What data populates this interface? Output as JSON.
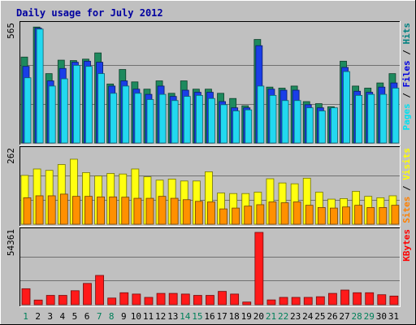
{
  "chart_data": {
    "type": "bar",
    "title": "Daily usage for July 2012",
    "days": [
      "1",
      "2",
      "3",
      "4",
      "5",
      "6",
      "7",
      "8",
      "9",
      "10",
      "11",
      "12",
      "13",
      "14",
      "15",
      "16",
      "17",
      "18",
      "19",
      "20",
      "21",
      "22",
      "23",
      "24",
      "25",
      "26",
      "27",
      "28",
      "29",
      "30",
      "31"
    ],
    "weekend_days": [
      "1",
      "7",
      "8",
      "14",
      "15",
      "21",
      "22",
      "28",
      "29"
    ],
    "panels": [
      {
        "id": "hits-files-pages",
        "ymax_label": "565",
        "ylim": [
          0,
          565
        ],
        "gridlines": [
          188,
          377
        ],
        "legend": [
          {
            "text": "Pages",
            "color": "#00e0f0"
          },
          {
            "text": " / ",
            "color": "#000000"
          },
          {
            "text": "Files",
            "color": "#0000e0"
          },
          {
            "text": " / ",
            "color": "#000000"
          },
          {
            "text": "Hits",
            "color": "#008080"
          }
        ],
        "series": [
          {
            "name": "Hits",
            "color": "#1e8a5e",
            "values": [
              415,
              560,
              335,
              400,
              398,
              405,
              435,
              285,
              355,
              295,
              260,
              300,
              240,
              300,
              260,
              260,
              240,
              215,
              180,
              500,
              270,
              265,
              275,
              200,
              190,
              175,
              395,
              275,
              265,
              290,
              335
            ]
          },
          {
            "name": "Files",
            "color": "#1a3ee8",
            "values": [
              370,
              555,
              300,
              360,
              390,
              395,
              390,
              275,
              300,
              260,
              235,
              275,
              225,
              255,
              245,
              245,
              200,
              170,
              170,
              470,
              260,
              255,
              255,
              185,
              170,
              165,
              365,
              250,
              245,
              270,
              290
            ]
          },
          {
            "name": "Pages",
            "color": "#22d8f0",
            "values": [
              315,
              550,
              275,
              310,
              375,
              370,
              335,
              240,
              275,
              240,
              210,
              235,
              205,
              225,
              230,
              215,
              185,
              155,
              160,
              275,
              230,
              205,
              205,
              170,
              155,
              170,
              345,
              230,
              235,
              235,
              265
            ]
          }
        ]
      },
      {
        "id": "visits-sites",
        "ymax_label": "262",
        "ylim": [
          0,
          262
        ],
        "gridlines": [
          87,
          175
        ],
        "legend": [
          {
            "text": "Sites",
            "color": "#ff8000"
          },
          {
            "text": " / ",
            "color": "#000000"
          },
          {
            "text": "Visits",
            "color": "#ffff00"
          }
        ],
        "series": [
          {
            "name": "Visits",
            "color": "#ffff10",
            "values": [
              175,
              198,
              193,
              214,
              233,
              185,
              173,
              182,
              180,
              198,
              170,
              158,
              162,
              155,
              155,
              188,
              112,
              110,
              110,
              115,
              163,
              148,
              145,
              165,
              115,
              90,
              92,
              118,
              100,
              95,
              102
            ]
          },
          {
            "name": "Sites",
            "color": "#ff9000",
            "values": [
              95,
              102,
              102,
              108,
              100,
              100,
              98,
              98,
              97,
              93,
              93,
              100,
              93,
              88,
              82,
              80,
              55,
              58,
              65,
              70,
              80,
              77,
              80,
              68,
              60,
              58,
              62,
              68,
              60,
              60,
              68
            ]
          }
        ]
      },
      {
        "id": "kbytes",
        "ymax_label": "54361",
        "ylim": [
          0,
          54361
        ],
        "gridlines": [
          18120,
          36241
        ],
        "legend": [
          {
            "text": "KBytes",
            "color": "#ff0000"
          }
        ],
        "series": [
          {
            "name": "KBytes",
            "color": "#ff1a1a",
            "values": [
              12000,
              3500,
              7000,
              7000,
              10500,
              16000,
              22000,
              5000,
              9000,
              8000,
              5500,
              8500,
              8500,
              8000,
              7000,
              7000,
              10000,
              8000,
              2000,
              54361,
              3600,
              5500,
              5500,
              5500,
              6000,
              8500,
              11000,
              9000,
              9000,
              7500,
              6500
            ]
          }
        ]
      }
    ]
  }
}
